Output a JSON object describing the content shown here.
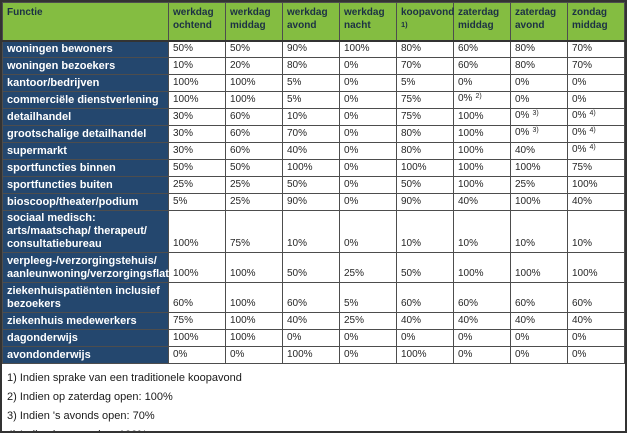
{
  "colors": {
    "header-green": "#84BD41",
    "label-blue": "#24476E",
    "header-text": "#1C3144",
    "cell-text": "#262626",
    "grid-line": "#4d4d4d",
    "outer-border": "#333333"
  },
  "table": {
    "corner_label": "Functie",
    "columns": [
      {
        "label": "werkdag ochtend"
      },
      {
        "label": "werkdag middag"
      },
      {
        "label": "werkdag avond"
      },
      {
        "label": "werkdag nacht"
      },
      {
        "label": "koopavond",
        "note": "1)"
      },
      {
        "label": "zaterdag middag"
      },
      {
        "label": "zaterdag avond"
      },
      {
        "label": "zondag middag"
      }
    ],
    "rows": [
      {
        "label": "woningen bewoners",
        "values": [
          "50%",
          "50%",
          "90%",
          "100%",
          "80%",
          "60%",
          "80%",
          "70%"
        ]
      },
      {
        "label": "woningen bezoekers",
        "values": [
          "10%",
          "20%",
          "80%",
          "0%",
          "70%",
          "60%",
          "80%",
          "70%"
        ]
      },
      {
        "label": "kantoor/bedrijven",
        "values": [
          "100%",
          "100%",
          "5%",
          "0%",
          "5%",
          "0%",
          "0%",
          "0%"
        ]
      },
      {
        "label": "commerciële dienstverlening",
        "values": [
          "100%",
          "100%",
          "5%",
          "0%",
          "75%",
          {
            "value": "0%",
            "note": "2)"
          },
          "0%",
          "0%"
        ]
      },
      {
        "label": "detailhandel",
        "values": [
          "30%",
          "60%",
          "10%",
          "0%",
          "75%",
          "100%",
          {
            "value": "0%",
            "note": "3)"
          },
          {
            "value": "0%",
            "note": "4)"
          }
        ]
      },
      {
        "label": "grootschalige detailhandel",
        "values": [
          "30%",
          "60%",
          "70%",
          "0%",
          "80%",
          "100%",
          {
            "value": "0%",
            "note": "3)"
          },
          {
            "value": "0%",
            "note": "4)"
          }
        ]
      },
      {
        "label": "supermarkt",
        "values": [
          "30%",
          "60%",
          "40%",
          "0%",
          "80%",
          "100%",
          "40%",
          {
            "value": "0%",
            "note": "4)"
          }
        ]
      },
      {
        "label": "sportfuncties binnen",
        "values": [
          "50%",
          "50%",
          "100%",
          "0%",
          "100%",
          "100%",
          "100%",
          "75%"
        ]
      },
      {
        "label": "sportfuncties buiten",
        "values": [
          "25%",
          "25%",
          "50%",
          "0%",
          "50%",
          "100%",
          "25%",
          "100%"
        ]
      },
      {
        "label": "bioscoop/theater/podium",
        "values": [
          "5%",
          "25%",
          "90%",
          "0%",
          "90%",
          "40%",
          "100%",
          "40%"
        ]
      },
      {
        "label": "sociaal medisch: arts/maatschap/ therapeut/ consultatiebureau",
        "tall": true,
        "values": [
          "100%",
          "75%",
          "10%",
          "0%",
          "10%",
          "10%",
          "10%",
          "10%"
        ]
      },
      {
        "label": "verpleeg-/verzorgingstehuis/ aanleunwoning/verzorgingsflat",
        "tall": true,
        "values": [
          "100%",
          "100%",
          "50%",
          "25%",
          "50%",
          "100%",
          "100%",
          "100%"
        ]
      },
      {
        "label": "ziekenhuispatiënten inclusief bezoekers",
        "tall": true,
        "values": [
          "60%",
          "100%",
          "60%",
          "5%",
          "60%",
          "60%",
          "60%",
          "60%"
        ]
      },
      {
        "label": "ziekenhuis medewerkers",
        "values": [
          "75%",
          "100%",
          "40%",
          "25%",
          "40%",
          "40%",
          "40%",
          "40%"
        ]
      },
      {
        "label": "dagonderwijs",
        "values": [
          "100%",
          "100%",
          "0%",
          "0%",
          "0%",
          "0%",
          "0%",
          "0%"
        ]
      },
      {
        "label": "avondonderwijs",
        "values": [
          "0%",
          "0%",
          "100%",
          "0%",
          "100%",
          "0%",
          "0%",
          "0%"
        ]
      }
    ]
  },
  "footnotes": [
    "1) Indien sprake van een traditionele koopavond",
    "2) Indien op zaterdag open: 100%",
    "3) Indien 's avonds open: 70%",
    "4) Indien koopzondag: 100%"
  ]
}
